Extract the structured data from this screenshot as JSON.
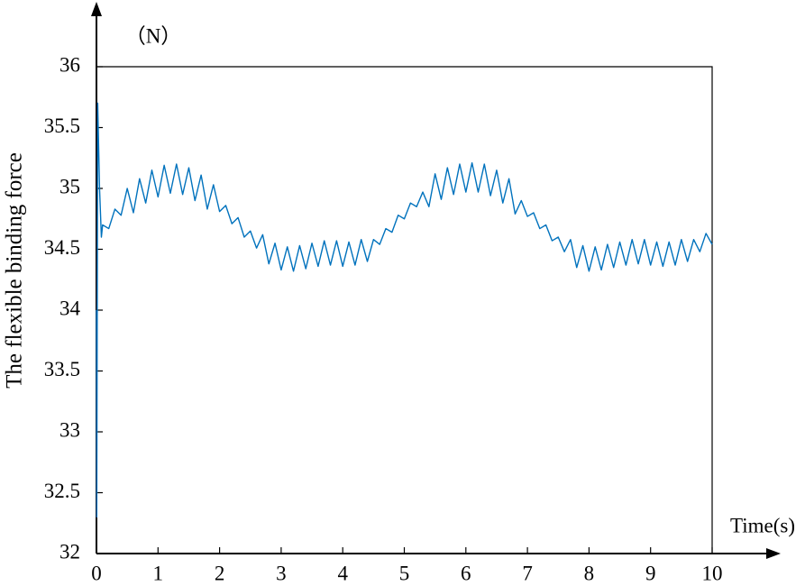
{
  "chart_data": {
    "type": "line",
    "y_unit": "（N）",
    "x_label": "Time(s)",
    "y_label": "The flexible binding force",
    "xlim": [
      0,
      10
    ],
    "xticks": [
      0,
      1,
      2,
      3,
      4,
      5,
      6,
      7,
      8,
      9,
      10
    ],
    "ylim": [
      32,
      36
    ],
    "yticks": [
      32,
      32.5,
      33,
      33.5,
      34,
      34.5,
      35,
      35.5,
      36
    ],
    "grid": false,
    "series": [
      {
        "color": "#0072bd",
        "x": [
          0,
          0.005,
          0.02,
          0.05,
          0.08,
          0.1,
          0.2,
          0.3,
          0.4,
          0.5,
          0.6,
          0.7,
          0.8,
          0.9,
          1.0,
          1.1,
          1.2,
          1.3,
          1.4,
          1.5,
          1.6,
          1.7,
          1.8,
          1.9,
          2.0,
          2.1,
          2.2,
          2.3,
          2.4,
          2.5,
          2.6,
          2.7,
          2.8,
          2.9,
          3.0,
          3.1,
          3.2,
          3.3,
          3.4,
          3.5,
          3.6,
          3.7,
          3.8,
          3.9,
          4.0,
          4.1,
          4.2,
          4.3,
          4.4,
          4.5,
          4.6,
          4.7,
          4.8,
          4.9,
          5.0,
          5.1,
          5.2,
          5.3,
          5.4,
          5.5,
          5.6,
          5.7,
          5.8,
          5.9,
          6.0,
          6.1,
          6.2,
          6.3,
          6.4,
          6.5,
          6.6,
          6.7,
          6.8,
          6.9,
          7.0,
          7.1,
          7.2,
          7.3,
          7.4,
          7.5,
          7.6,
          7.7,
          7.8,
          7.9,
          8.0,
          8.1,
          8.2,
          8.3,
          8.4,
          8.5,
          8.6,
          8.7,
          8.8,
          8.9,
          9.0,
          9.1,
          9.2,
          9.3,
          9.4,
          9.5,
          9.6,
          9.7,
          9.8,
          9.9,
          10.0
        ],
        "values": [
          34.0,
          32.3,
          35.7,
          35.0,
          34.6,
          34.7,
          34.67,
          34.83,
          34.78,
          35.0,
          34.8,
          35.08,
          34.88,
          35.15,
          34.93,
          35.19,
          34.96,
          35.2,
          34.95,
          35.17,
          34.9,
          35.11,
          34.83,
          35.03,
          34.81,
          34.86,
          34.71,
          34.76,
          34.6,
          34.65,
          34.51,
          34.62,
          34.38,
          34.55,
          34.33,
          34.52,
          34.32,
          34.53,
          34.34,
          34.55,
          34.36,
          34.57,
          34.37,
          34.57,
          34.36,
          34.56,
          34.37,
          34.58,
          34.4,
          34.58,
          34.54,
          34.67,
          34.64,
          34.78,
          34.75,
          34.88,
          34.85,
          34.97,
          34.85,
          35.12,
          34.91,
          35.17,
          34.95,
          35.2,
          34.97,
          35.21,
          34.97,
          35.2,
          34.94,
          35.15,
          34.88,
          35.08,
          34.79,
          34.9,
          34.77,
          34.8,
          34.67,
          34.7,
          34.57,
          34.6,
          34.48,
          34.58,
          34.35,
          34.53,
          34.32,
          34.52,
          34.33,
          34.54,
          34.35,
          34.56,
          34.37,
          34.58,
          34.38,
          34.58,
          34.37,
          34.56,
          34.36,
          34.56,
          34.37,
          34.58,
          34.4,
          34.58,
          34.48,
          34.63,
          34.54
        ]
      }
    ]
  }
}
